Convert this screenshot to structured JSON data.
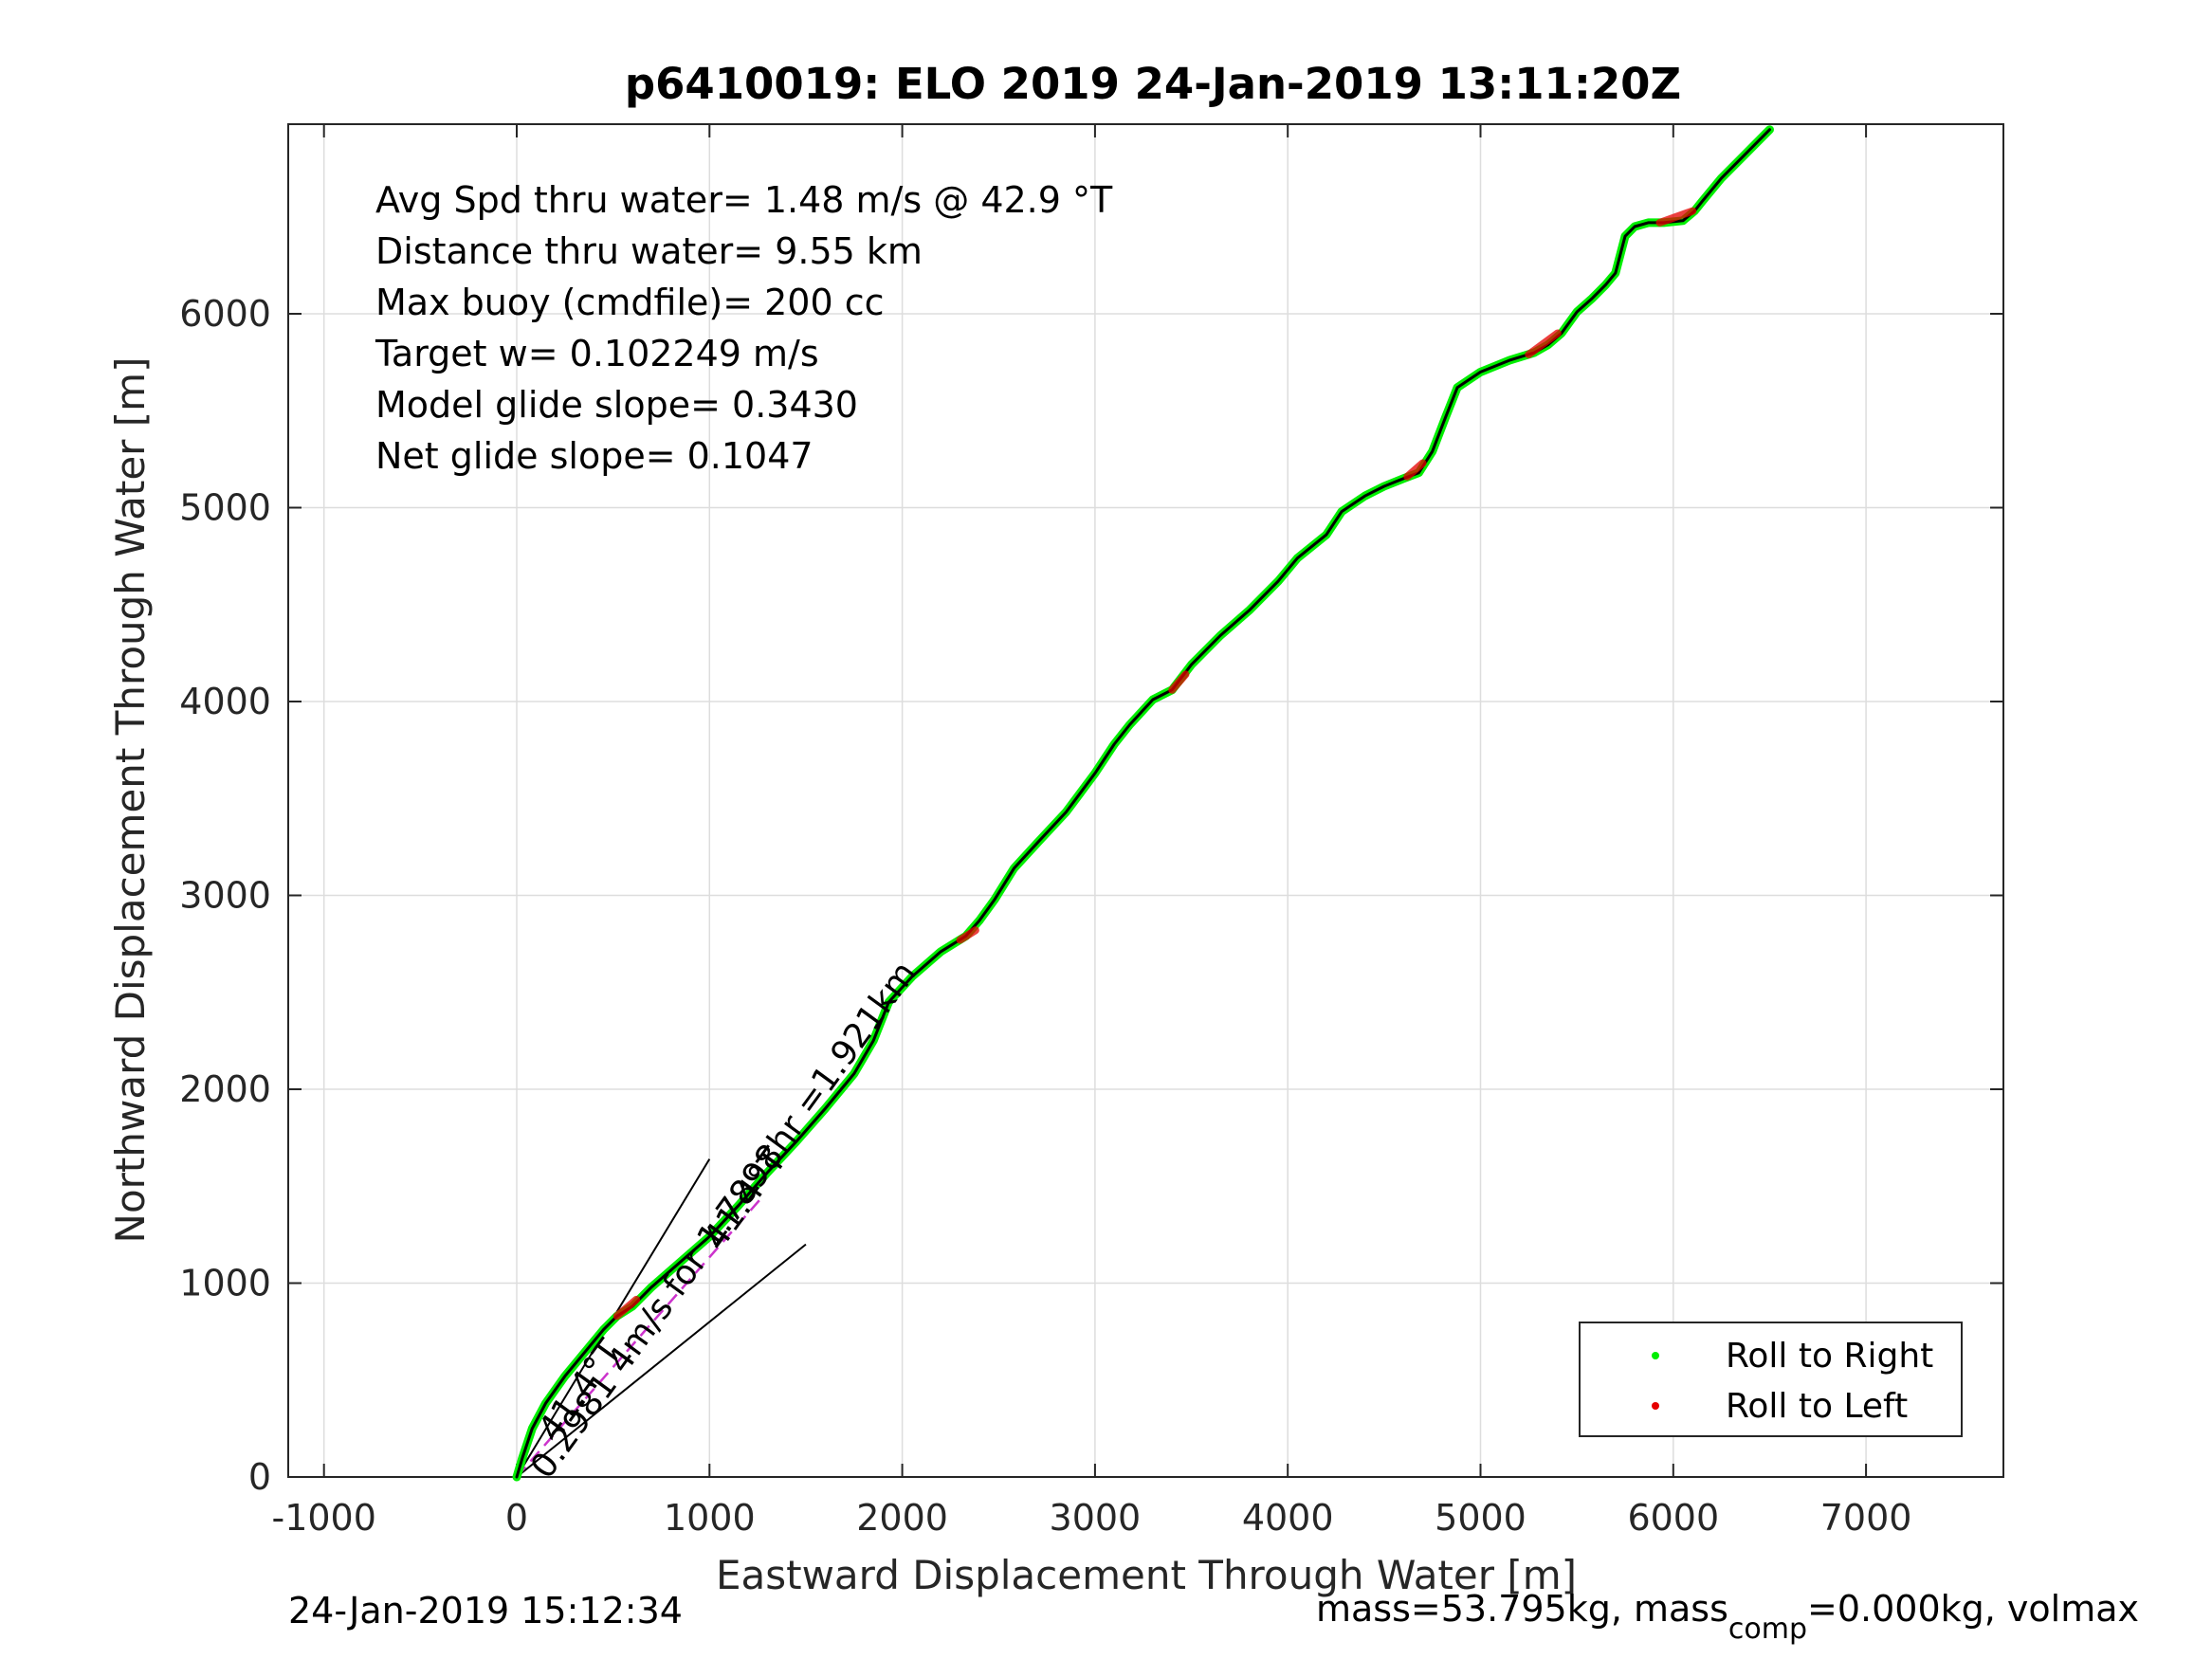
{
  "figure": {
    "title": "p6410019: ELO 2019 24-Jan-2019 13:11:20Z",
    "footer_left": "24-Jan-2019 15:12:34",
    "footer_right_pre": "mass=53.795kg, mass",
    "footer_right_sub": "comp",
    "footer_right_post": "=0.000kg, volmax"
  },
  "stats": [
    "Avg Spd thru water=  1.48 m/s @  42.9 °T",
    "Distance thru water=  9.55 km",
    "Max buoy (cmdfile)= 200 cc",
    "Target w= 0.102249 m/s",
    "Model glide slope= 0.3430",
    "Net glide slope= 0.1047"
  ],
  "annotations": {
    "current_label": "0.2981 4m/s for 1.7898hr =1.921km",
    "angle_upper": "41.4°T",
    "angle_lower": "41.4°T"
  },
  "colors": {
    "track": "#000000",
    "roll_right": "#00ee00",
    "roll_left": "#e60000",
    "current": "#cc33cc",
    "axis": "#262626",
    "grid": "#dddddd"
  },
  "chart_data": {
    "type": "line",
    "title": "p6410019: ELO 2019 24-Jan-2019 13:11:20Z",
    "xlabel": "Eastward Displacement Through Water [m]",
    "ylabel": "Northward Displacement Through Water [m]",
    "xlim": [
      -1200,
      7700
    ],
    "ylim": [
      0,
      6950
    ],
    "xticks": [
      -1000,
      0,
      1000,
      2000,
      3000,
      4000,
      5000,
      6000,
      7000
    ],
    "yticks": [
      0,
      1000,
      2000,
      3000,
      4000,
      5000,
      6000
    ],
    "grid": true,
    "legend": {
      "location": "bottom-right",
      "entries": [
        "Roll to Right",
        "Roll to Left"
      ]
    },
    "series": [
      {
        "name": "track",
        "x": [
          0,
          30,
          80,
          150,
          250,
          350,
          450,
          520,
          600,
          700,
          850,
          1000,
          1150,
          1300,
          1450,
          1600,
          1750,
          1850,
          1930,
          2050,
          2200,
          2330,
          2400,
          2480,
          2580,
          2700,
          2850,
          3000,
          3100,
          3180,
          3300,
          3400,
          3500,
          3650,
          3800,
          3950,
          4050,
          4200,
          4280,
          4400,
          4500,
          4600,
          4680,
          4750,
          4820,
          4880,
          5000,
          5150,
          5280,
          5350,
          5420,
          5500,
          5580,
          5650,
          5700,
          5750,
          5800,
          5870,
          5950,
          6050,
          6110,
          6150,
          6250,
          6350,
          6500
        ],
        "y": [
          0,
          100,
          250,
          380,
          520,
          640,
          760,
          830,
          880,
          980,
          1110,
          1240,
          1400,
          1570,
          1730,
          1900,
          2080,
          2250,
          2450,
          2580,
          2710,
          2790,
          2870,
          2980,
          3140,
          3270,
          3430,
          3630,
          3780,
          3880,
          4010,
          4060,
          4190,
          4340,
          4470,
          4620,
          4740,
          4860,
          4980,
          5060,
          5110,
          5150,
          5180,
          5290,
          5470,
          5620,
          5700,
          5760,
          5800,
          5840,
          5900,
          6010,
          6080,
          6150,
          6210,
          6400,
          6450,
          6470,
          6470,
          6480,
          6530,
          6580,
          6700,
          6800,
          6950
        ]
      }
    ],
    "current_vector": {
      "x": [
        0,
        1270
      ],
      "y": [
        0,
        1440
      ]
    },
    "glide_angle_lines": [
      {
        "x": [
          0,
          1000
        ],
        "y": [
          0,
          1640
        ]
      },
      {
        "x": [
          0,
          1500
        ],
        "y": [
          0,
          1200
        ]
      }
    ],
    "roll_left_segments": [
      {
        "x": [
          520,
          620
        ],
        "y": [
          830,
          915
        ]
      },
      {
        "x": [
          2300,
          2380
        ],
        "y": [
          2770,
          2820
        ]
      },
      {
        "x": [
          3400,
          3470
        ],
        "y": [
          4060,
          4140
        ]
      },
      {
        "x": [
          4620,
          4700
        ],
        "y": [
          5160,
          5230
        ]
      },
      {
        "x": [
          5250,
          5400
        ],
        "y": [
          5790,
          5900
        ]
      },
      {
        "x": [
          5930,
          6100
        ],
        "y": [
          6470,
          6530
        ]
      }
    ]
  }
}
